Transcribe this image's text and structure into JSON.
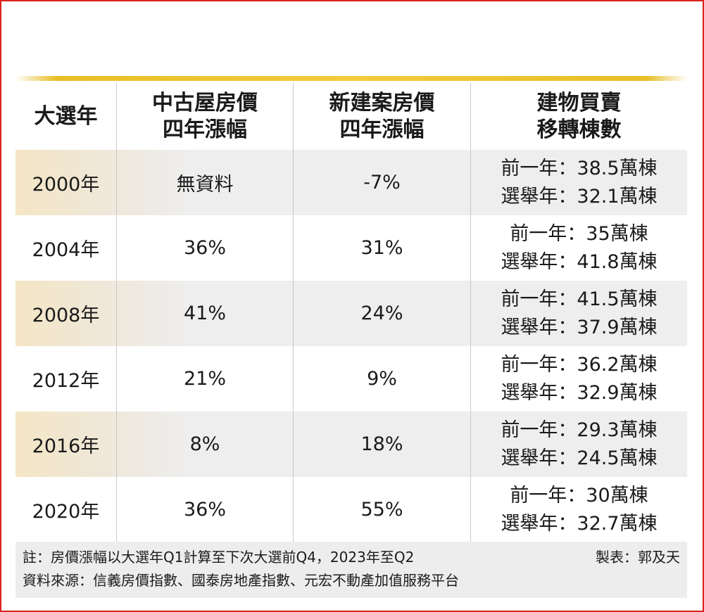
{
  "table": {
    "headers": [
      [
        "大選年"
      ],
      [
        "中古屋房價",
        "四年漲幅"
      ],
      [
        "新建案房價",
        "四年漲幅"
      ],
      [
        "建物買賣",
        "移轉棟數"
      ]
    ],
    "rows": [
      {
        "year": "2000年",
        "used": "無資料",
        "new": "-7%",
        "prev": "前一年：38.5萬棟",
        "elect": "選舉年：32.1萬棟"
      },
      {
        "year": "2004年",
        "used": "36%",
        "new": "31%",
        "prev": "前一年：35萬棟",
        "elect": "選舉年：41.8萬棟"
      },
      {
        "year": "2008年",
        "used": "41%",
        "new": "24%",
        "prev": "前一年：41.5萬棟",
        "elect": "選舉年：37.9萬棟"
      },
      {
        "year": "2012年",
        "used": "21%",
        "new": "9%",
        "prev": "前一年：36.2萬棟",
        "elect": "選舉年：32.9萬棟"
      },
      {
        "year": "2016年",
        "used": "8%",
        "new": "18%",
        "prev": "前一年：29.3萬棟",
        "elect": "選舉年：24.5萬棟"
      },
      {
        "year": "2020年",
        "used": "36%",
        "new": "55%",
        "prev": "前一年：30萬棟",
        "elect": "選舉年：32.7萬棟"
      }
    ]
  },
  "note": {
    "remark": "註：房價漲幅以大選年Q1計算至下次大選前Q4，2023年至Q2",
    "credit": "製表：郭及天",
    "source": "資料來源：信義房價指數、國泰房地產指數、元宏不動產加值服務平台"
  },
  "colors": {
    "frame_border": "#d9231c",
    "gold_rule": "#e8be28",
    "tinted_row": "#eeeeee",
    "tinted_row_left": "#f4e6c5",
    "note_background": "#ededed"
  }
}
